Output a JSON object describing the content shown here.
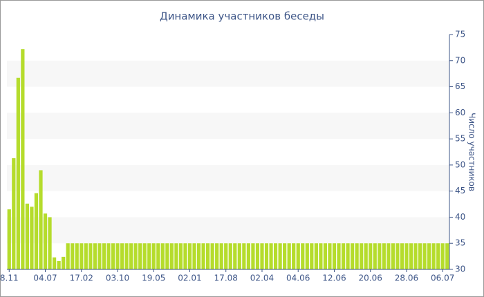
{
  "chart_data": {
    "type": "bar",
    "title": "Динамика участников беседы",
    "y_axis_label": "Число участников",
    "categories": [
      "8.11",
      null,
      null,
      null,
      null,
      null,
      null,
      null,
      "04.07",
      null,
      null,
      null,
      null,
      null,
      null,
      null,
      "17.02",
      null,
      null,
      null,
      null,
      null,
      null,
      null,
      "03.10",
      null,
      null,
      null,
      null,
      null,
      null,
      null,
      "19.05",
      null,
      null,
      null,
      null,
      null,
      null,
      null,
      "02.01",
      null,
      null,
      null,
      null,
      null,
      null,
      null,
      "17.08",
      null,
      null,
      null,
      null,
      null,
      null,
      null,
      "02.04",
      null,
      null,
      null,
      null,
      null,
      null,
      null,
      "04.06",
      null,
      null,
      null,
      null,
      null,
      null,
      null,
      "12.06",
      null,
      null,
      null,
      null,
      null,
      null,
      null,
      "20.06",
      null,
      null,
      null,
      null,
      null,
      null,
      null,
      "28.06",
      null,
      null,
      null,
      null,
      null,
      null,
      null,
      "06.07",
      null
    ],
    "values": [
      41.5,
      51.3,
      66.7,
      72.2,
      42.6,
      42,
      44.6,
      49,
      40.7,
      40,
      32.3,
      31.6,
      32.4,
      35,
      35,
      35,
      35,
      35,
      35,
      35,
      35,
      35,
      35,
      35,
      35,
      35,
      35,
      35,
      35,
      35,
      35,
      35,
      35,
      35,
      35,
      35,
      35,
      35,
      35,
      35,
      35,
      35,
      35,
      35,
      35,
      35,
      35,
      35,
      35,
      35,
      35,
      35,
      35,
      35,
      35,
      35,
      35,
      35,
      35,
      35,
      35,
      35,
      35,
      35,
      35,
      35,
      35,
      35,
      35,
      35,
      35,
      35,
      35,
      35,
      35,
      35,
      35,
      35,
      35,
      35,
      35,
      35,
      35,
      35,
      35,
      35,
      35,
      35,
      35,
      35,
      35,
      35,
      35,
      35,
      35,
      35,
      35,
      35
    ],
    "color": "#b5dc2c",
    "ylim": [
      30,
      75
    ],
    "yticks": [
      30,
      35,
      40,
      45,
      50,
      55,
      60,
      65,
      70,
      75
    ],
    "y_axis_side": "right",
    "alternating_bands": true
  }
}
